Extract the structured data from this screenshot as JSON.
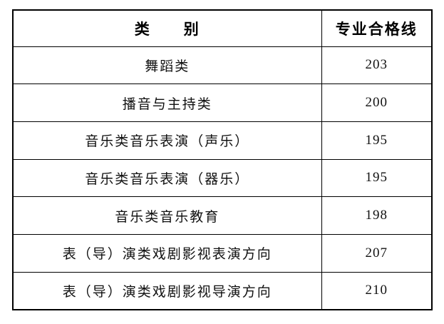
{
  "table": {
    "columns": {
      "category_label": "类　　别",
      "score_label": "专业合格线"
    },
    "rows": [
      {
        "category": "舞蹈类",
        "score": "203"
      },
      {
        "category": "播音与主持类",
        "score": "200"
      },
      {
        "category": "音乐类音乐表演（声乐）",
        "score": "195"
      },
      {
        "category": "音乐类音乐表演（器乐）",
        "score": "195"
      },
      {
        "category": "音乐类音乐教育",
        "score": "198"
      },
      {
        "category": "表（导）演类戏剧影视表演方向",
        "score": "207"
      },
      {
        "category": "表（导）演类戏剧影视导演方向",
        "score": "210"
      }
    ],
    "colors": {
      "border": "#000000",
      "text": "#111111",
      "background": "#ffffff"
    }
  }
}
